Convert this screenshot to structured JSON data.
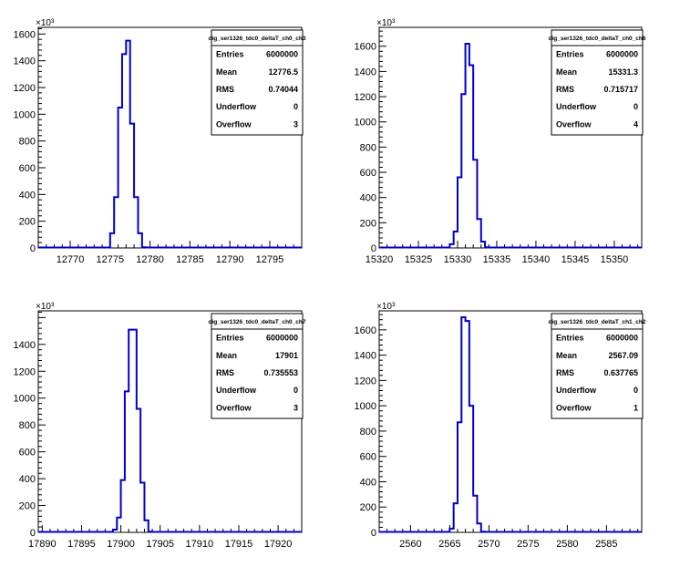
{
  "chart_data": [
    {
      "type": "bar",
      "stats_title": "dig_ser1326_tdc0_deltaT_ch0_ch3",
      "stats": [
        {
          "label": "Entries",
          "value": "6000000"
        },
        {
          "label": "Mean",
          "value": "12776.5"
        },
        {
          "label": "RMS",
          "value": "0.74044"
        },
        {
          "label": "Underflow",
          "value": "0"
        },
        {
          "label": "Overflow",
          "value": "3"
        }
      ],
      "y_multiplier": "×10³",
      "xlim": [
        12766,
        12799
      ],
      "ylim": [
        0,
        1650
      ],
      "xticks": [
        12770,
        12775,
        12780,
        12785,
        12790,
        12795
      ],
      "yticks": [
        0,
        200,
        400,
        600,
        800,
        1000,
        1200,
        1400,
        1600
      ],
      "bin_width": 0.5,
      "bins": [
        {
          "x": 12775.0,
          "y": 110
        },
        {
          "x": 12775.5,
          "y": 380
        },
        {
          "x": 12776.0,
          "y": 1050
        },
        {
          "x": 12776.5,
          "y": 1450
        },
        {
          "x": 12777.0,
          "y": 1550
        },
        {
          "x": 12777.5,
          "y": 930
        },
        {
          "x": 12778.0,
          "y": 380
        },
        {
          "x": 12778.5,
          "y": 110
        },
        {
          "x": 12779.0,
          "y": 5
        }
      ]
    },
    {
      "type": "bar",
      "stats_title": "dig_ser1326_tdc0_deltaT_ch0_ch6",
      "stats": [
        {
          "label": "Entries",
          "value": "6000000"
        },
        {
          "label": "Mean",
          "value": "15331.3"
        },
        {
          "label": "RMS",
          "value": "0.715717"
        },
        {
          "label": "Underflow",
          "value": "0"
        },
        {
          "label": "Overflow",
          "value": "4"
        }
      ],
      "y_multiplier": "×10³",
      "xlim": [
        15320,
        15353.5
      ],
      "ylim": [
        0,
        1750
      ],
      "xticks": [
        15320,
        15325,
        15330,
        15335,
        15340,
        15345,
        15350
      ],
      "yticks": [
        0,
        200,
        400,
        600,
        800,
        1000,
        1200,
        1400,
        1600
      ],
      "bin_width": 0.5,
      "bins": [
        {
          "x": 15329.0,
          "y": 30
        },
        {
          "x": 15329.5,
          "y": 130
        },
        {
          "x": 15330.0,
          "y": 560
        },
        {
          "x": 15330.5,
          "y": 1220
        },
        {
          "x": 15331.0,
          "y": 1620
        },
        {
          "x": 15331.5,
          "y": 1450
        },
        {
          "x": 15332.0,
          "y": 700
        },
        {
          "x": 15332.5,
          "y": 230
        },
        {
          "x": 15333.0,
          "y": 50
        },
        {
          "x": 15333.5,
          "y": 5
        }
      ]
    },
    {
      "type": "bar",
      "stats_title": "dig_ser1326_tdc0_deltaT_ch0_ch7",
      "stats": [
        {
          "label": "Entries",
          "value": "6000000"
        },
        {
          "label": "Mean",
          "value": "17901"
        },
        {
          "label": "RMS",
          "value": "0.735553"
        },
        {
          "label": "Underflow",
          "value": "0"
        },
        {
          "label": "Overflow",
          "value": "3"
        }
      ],
      "y_multiplier": "×10³",
      "xlim": [
        17889.5,
        17923
      ],
      "ylim": [
        0,
        1650
      ],
      "xticks": [
        17890,
        17895,
        17900,
        17905,
        17910,
        17915,
        17920
      ],
      "yticks": [
        0,
        200,
        400,
        600,
        800,
        1000,
        1200,
        1400
      ],
      "bin_width": 0.5,
      "bins": [
        {
          "x": 17899.0,
          "y": 20
        },
        {
          "x": 17899.5,
          "y": 110
        },
        {
          "x": 17900.0,
          "y": 390
        },
        {
          "x": 17900.5,
          "y": 1050
        },
        {
          "x": 17901.0,
          "y": 1510
        },
        {
          "x": 17901.5,
          "y": 1510
        },
        {
          "x": 17902.0,
          "y": 920
        },
        {
          "x": 17902.5,
          "y": 370
        },
        {
          "x": 17903.0,
          "y": 90
        },
        {
          "x": 17903.5,
          "y": 5
        }
      ]
    },
    {
      "type": "bar",
      "stats_title": "dig_ser1326_tdc0_deltaT_ch1_ch2",
      "stats": [
        {
          "label": "Entries",
          "value": "6000000"
        },
        {
          "label": "Mean",
          "value": "2567.09"
        },
        {
          "label": "RMS",
          "value": "0.637765"
        },
        {
          "label": "Underflow",
          "value": "0"
        },
        {
          "label": "Overflow",
          "value": "1"
        }
      ],
      "y_multiplier": "×10³",
      "xlim": [
        2556,
        2589.5
      ],
      "ylim": [
        0,
        1750
      ],
      "xticks": [
        2560,
        2565,
        2570,
        2575,
        2580,
        2585
      ],
      "yticks": [
        0,
        200,
        400,
        600,
        800,
        1000,
        1200,
        1400,
        1600
      ],
      "bin_width": 0.5,
      "bins": [
        {
          "x": 2565.0,
          "y": 30
        },
        {
          "x": 2565.5,
          "y": 230
        },
        {
          "x": 2566.0,
          "y": 870
        },
        {
          "x": 2566.5,
          "y": 1700
        },
        {
          "x": 2567.0,
          "y": 1670
        },
        {
          "x": 2567.5,
          "y": 1000
        },
        {
          "x": 2568.0,
          "y": 290
        },
        {
          "x": 2568.5,
          "y": 70
        },
        {
          "x": 2569.0,
          "y": 5
        }
      ]
    }
  ],
  "colors": {
    "histogram_line": "#0000cc",
    "frame": "#000000",
    "background": "#ffffff"
  }
}
